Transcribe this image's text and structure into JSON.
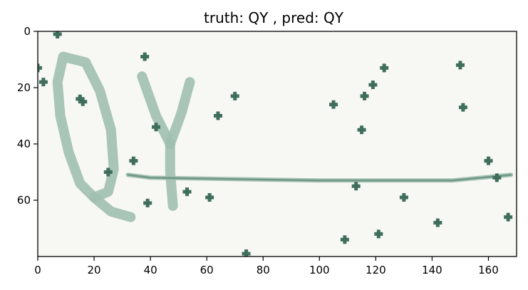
{
  "chart_data": {
    "type": "image",
    "title": "truth: QY , pred: QY",
    "xlabel": "",
    "ylabel": "",
    "xlim": [
      0,
      170
    ],
    "ylim": [
      80,
      0
    ],
    "xticks": [
      0,
      20,
      40,
      60,
      80,
      100,
      120,
      140,
      160
    ],
    "yticks": [
      0,
      20,
      40,
      60
    ],
    "grid": false,
    "image_shape": [
      80,
      170
    ],
    "colors": {
      "background": "#f7f8f3",
      "ink": "#9fbfb0",
      "ink_dark": "#6f9686",
      "noise": "#3f6f5c"
    },
    "noise_points": [
      [
        7,
        1
      ],
      [
        0,
        13
      ],
      [
        2,
        18
      ],
      [
        38,
        9
      ],
      [
        15,
        24
      ],
      [
        16,
        25
      ],
      [
        42,
        34
      ],
      [
        34,
        46
      ],
      [
        25,
        50
      ],
      [
        53,
        57
      ],
      [
        39,
        61
      ],
      [
        61,
        59
      ],
      [
        64,
        30
      ],
      [
        70,
        23
      ],
      [
        74,
        79
      ],
      [
        105,
        26
      ],
      [
        109,
        74
      ],
      [
        113,
        55
      ],
      [
        115,
        35
      ],
      [
        116,
        23
      ],
      [
        119,
        19
      ],
      [
        121,
        72
      ],
      [
        123,
        13
      ],
      [
        130,
        59
      ],
      [
        142,
        68
      ],
      [
        150,
        12
      ],
      [
        151,
        27
      ],
      [
        160,
        46
      ],
      [
        163,
        52
      ],
      [
        167,
        66
      ]
    ],
    "glyph_strokes": [
      {
        "label": "Q",
        "points": [
          [
            13,
            10
          ],
          [
            9,
            9
          ],
          [
            7,
            18
          ],
          [
            8,
            30
          ],
          [
            11,
            43
          ],
          [
            15,
            54
          ],
          [
            20,
            59
          ],
          [
            25,
            57
          ],
          [
            27,
            49
          ],
          [
            26,
            35
          ],
          [
            22,
            21
          ],
          [
            17,
            11
          ],
          [
            13,
            10
          ]
        ]
      },
      {
        "label": "Q",
        "points": [
          [
            20,
            59
          ],
          [
            26,
            64
          ],
          [
            33,
            66
          ]
        ]
      },
      {
        "label": "Y",
        "points": [
          [
            37,
            16
          ],
          [
            42,
            30
          ],
          [
            47,
            40
          ]
        ]
      },
      {
        "label": "Y",
        "points": [
          [
            54,
            18
          ],
          [
            51,
            29
          ],
          [
            47,
            40
          ]
        ]
      },
      {
        "label": "Y",
        "points": [
          [
            47,
            40
          ],
          [
            47,
            50
          ],
          [
            48,
            62
          ]
        ]
      },
      {
        "label": "line",
        "points": [
          [
            32,
            51
          ],
          [
            40,
            52
          ],
          [
            100,
            53
          ],
          [
            147,
            53
          ],
          [
            168,
            51
          ]
        ]
      }
    ]
  }
}
